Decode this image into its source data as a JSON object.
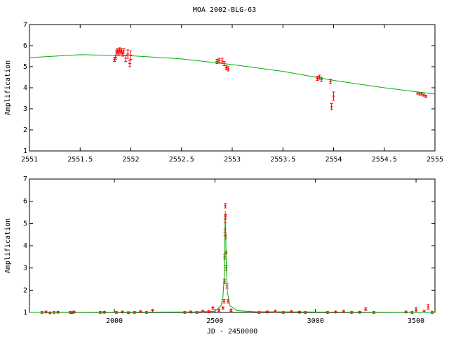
{
  "chart_data": [
    {
      "type": "scatter",
      "title": "MOA 2002-BLG-63",
      "ylabel": "Amplification",
      "xlim": [
        2551,
        2555
      ],
      "xticks": [
        2551,
        2551.5,
        2552,
        2552.5,
        2553,
        2553.5,
        2554,
        2554.5,
        2555
      ],
      "ylim": [
        1,
        7
      ],
      "yticks": [
        1,
        2,
        3,
        4,
        5,
        6,
        7
      ],
      "series": [
        {
          "style": "points",
          "color": "#ff0000",
          "x": [
            2551.84,
            2551.85,
            2551.86,
            2551.87,
            2551.88,
            2551.89,
            2551.9,
            2551.91,
            2551.92,
            2551.93,
            2551.95,
            2551.97,
            2551.99,
            2552.0,
            2552.85,
            2552.87,
            2552.9,
            2552.92,
            2552.94,
            2552.96,
            2553.84,
            2553.86,
            2553.88,
            2553.97,
            2553.98,
            2554.0,
            2554.83,
            2554.85,
            2554.87,
            2554.89,
            2554.91
          ],
          "values": [
            5.35,
            5.45,
            5.7,
            5.75,
            5.65,
            5.8,
            5.7,
            5.75,
            5.6,
            5.75,
            5.4,
            5.6,
            5.15,
            5.55,
            5.25,
            5.3,
            5.3,
            5.15,
            4.95,
            4.9,
            4.45,
            4.5,
            4.4,
            4.3,
            3.1,
            3.6,
            3.75,
            3.7,
            3.7,
            3.65,
            3.6
          ],
          "errors": [
            0.1,
            0.1,
            0.1,
            0.1,
            0.1,
            0.1,
            0.1,
            0.1,
            0.1,
            0.1,
            0.15,
            0.2,
            0.15,
            0.2,
            0.1,
            0.1,
            0.1,
            0.1,
            0.1,
            0.1,
            0.1,
            0.1,
            0.1,
            0.1,
            0.15,
            0.2,
            0.05,
            0.05,
            0.05,
            0.05,
            0.05
          ]
        },
        {
          "style": "line",
          "color": "#00b000",
          "x": [
            2551,
            2551.5,
            2552,
            2552.5,
            2553,
            2553.5,
            2554,
            2554.5,
            2555
          ],
          "values": [
            5.43,
            5.57,
            5.52,
            5.37,
            5.1,
            4.78,
            4.35,
            4.0,
            3.7
          ]
        }
      ]
    },
    {
      "type": "scatter",
      "ylabel": "Amplification",
      "xlabel": "JD - 2450000",
      "xlim": [
        1578,
        3594
      ],
      "xticks": [
        2000,
        2500,
        3000,
        3500
      ],
      "ylim": [
        1,
        7
      ],
      "yticks": [
        1,
        2,
        3,
        4,
        5,
        6,
        7
      ],
      "series": [
        {
          "style": "points",
          "color": "#ff0000",
          "x": [
            1640,
            1660,
            1680,
            1700,
            1720,
            1780,
            1790,
            1800,
            1930,
            1950,
            2010,
            2040,
            2070,
            2100,
            2130,
            2160,
            2190,
            2350,
            2380,
            2410,
            2440,
            2470,
            2490,
            2520,
            2540,
            2545,
            2548,
            2549,
            2550,
            2550.5,
            2551.9,
            2552.9,
            2553.9,
            2554.9,
            2556,
            2560,
            2565,
            2580,
            2720,
            2760,
            2800,
            2840,
            2880,
            2920,
            2950,
            3060,
            3100,
            3140,
            3180,
            3220,
            3250,
            3290,
            3450,
            3480,
            3500,
            3540,
            3560,
            3580
          ],
          "values": [
            1.0,
            1.02,
            0.98,
            1.0,
            1.01,
            1.0,
            0.99,
            1.02,
            1.0,
            1.01,
            1.0,
            1.02,
            0.99,
            1.0,
            1.03,
            1.0,
            1.08,
            1.0,
            1.02,
            1.0,
            1.05,
            1.03,
            1.2,
            1.1,
            1.2,
            1.5,
            2.4,
            3.5,
            4.6,
            5.2,
            5.8,
            5.3,
            4.4,
            3.7,
            3.0,
            2.2,
            1.5,
            1.1,
            1.0,
            1.02,
            1.05,
            1.0,
            1.03,
            1.01,
            1.0,
            1.0,
            1.02,
            1.04,
            1.0,
            1.01,
            1.15,
            1.0,
            1.02,
            1.0,
            1.15,
            1.05,
            1.25,
            1.0
          ],
          "errors": [
            0.04,
            0.04,
            0.04,
            0.04,
            0.04,
            0.04,
            0.04,
            0.04,
            0.04,
            0.04,
            0.04,
            0.04,
            0.04,
            0.04,
            0.04,
            0.04,
            0.06,
            0.04,
            0.04,
            0.04,
            0.04,
            0.04,
            0.05,
            0.05,
            0.05,
            0.08,
            0.1,
            0.1,
            0.15,
            0.15,
            0.1,
            0.1,
            0.1,
            0.05,
            0.1,
            0.1,
            0.08,
            0.05,
            0.04,
            0.04,
            0.05,
            0.04,
            0.04,
            0.04,
            0.04,
            0.04,
            0.04,
            0.05,
            0.04,
            0.04,
            0.06,
            0.04,
            0.04,
            0.04,
            0.08,
            0.05,
            0.1,
            0.04
          ]
        },
        {
          "style": "line",
          "color": "#00b000",
          "x": [
            1578,
            2400,
            2500,
            2530,
            2540,
            2546,
            2549,
            2551.6,
            2554,
            2557,
            2562,
            2575,
            2610,
            2700,
            3594
          ],
          "values": [
            1.0,
            1.02,
            1.05,
            1.3,
            1.7,
            2.6,
            4.0,
            5.57,
            4.35,
            2.9,
            1.9,
            1.3,
            1.08,
            1.03,
            1.0
          ]
        }
      ]
    }
  ]
}
